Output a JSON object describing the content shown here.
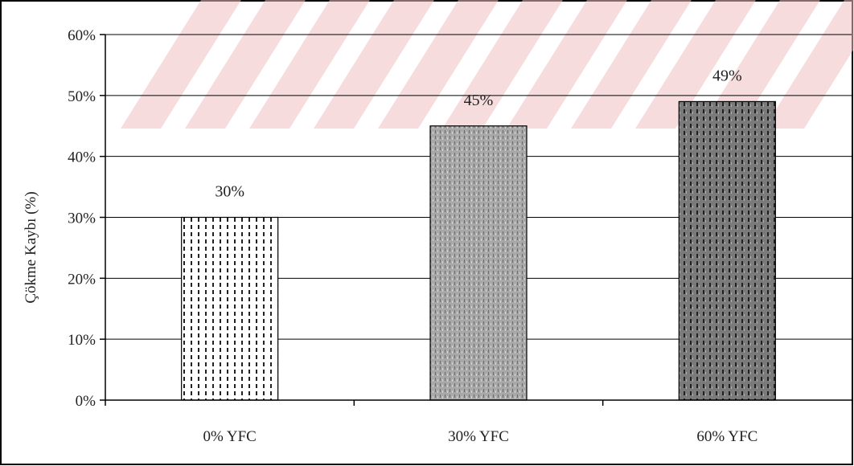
{
  "chart_data": {
    "type": "bar",
    "title": "",
    "xlabel": "",
    "ylabel": "Çökme Kaybı (%)",
    "categories": [
      "0% YFC",
      "30% YFC",
      "60% YFC"
    ],
    "values": [
      30,
      45,
      49
    ],
    "data_labels": [
      "30%",
      "45%",
      "49%"
    ],
    "ylim": [
      0,
      60
    ],
    "y_ticks": [
      0,
      10,
      20,
      30,
      40,
      50,
      60
    ],
    "y_tick_labels": [
      "0%",
      "10%",
      "20%",
      "30%",
      "40%",
      "50%",
      "60%"
    ],
    "grid": true,
    "legend": "none",
    "bar_patterns": [
      "dotted-light",
      "dotted-medium",
      "dotted-dark"
    ],
    "colors": {
      "bar_fill": [
        "#ffffff",
        "#a8a8a8",
        "#808080"
      ],
      "bar_pattern": [
        "#222222",
        "#6a6a6a",
        "#222222"
      ],
      "gridline": "#000000",
      "axis": "#000000",
      "background": "#ffffff",
      "watermark": "#f2c0c4"
    }
  }
}
